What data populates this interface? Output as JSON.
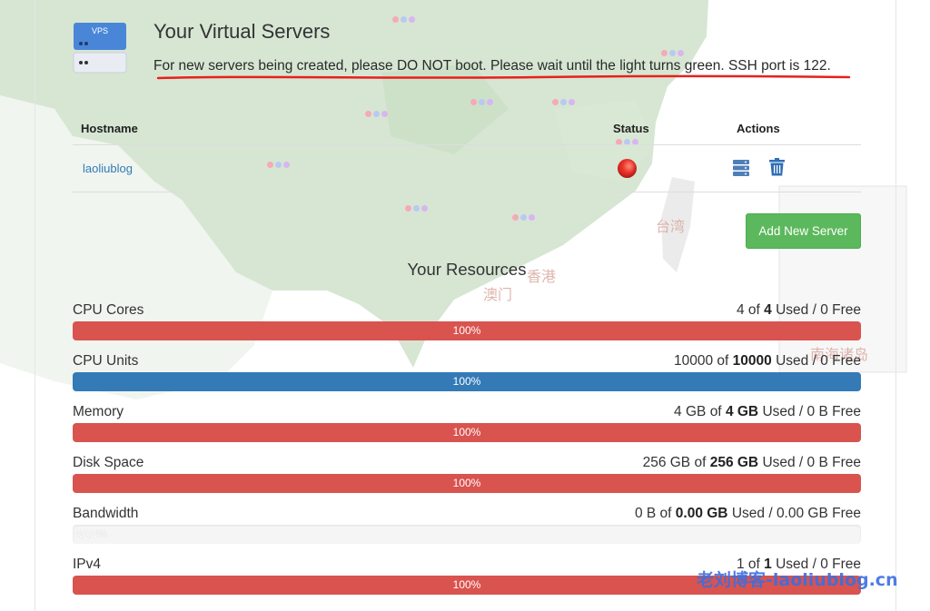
{
  "header": {
    "title": "Your Virtual Servers",
    "notice": "For new servers being created, please DO NOT boot. Please wait until the light turns green. SSH port is 122.",
    "icon_text": "VPS"
  },
  "table": {
    "columns": [
      "Hostname",
      "Status",
      "Actions"
    ],
    "rows": [
      {
        "hostname": "laoliublog",
        "status": "red",
        "actions": [
          "server-manage-icon",
          "trash-icon"
        ]
      }
    ]
  },
  "add_server_label": "Add New Server",
  "resources": {
    "title": "Your Resources",
    "items": [
      {
        "label": "CPU Cores",
        "used": "4",
        "total": "4",
        "unit": "",
        "free": "0",
        "percent_label": "100%",
        "percent": 100,
        "color": "#d9534f"
      },
      {
        "label": "CPU Units",
        "used": "10000",
        "total": "10000",
        "unit": "",
        "free": "0",
        "percent_label": "100%",
        "percent": 100,
        "color": "#337ab7"
      },
      {
        "label": "Memory",
        "used": "4 GB",
        "total": "4 GB",
        "unit": "",
        "free": "0 B",
        "percent_label": "100%",
        "percent": 100,
        "color": "#d9534f"
      },
      {
        "label": "Disk Space",
        "used": "256 GB",
        "total": "256 GB",
        "unit": "",
        "free": "0 B",
        "percent_label": "100%",
        "percent": 100,
        "color": "#d9534f"
      },
      {
        "label": "Bandwidth",
        "used": "0 B",
        "total": "0.00 GB",
        "unit": "",
        "free": "0.00 GB",
        "percent_label": "NAN%",
        "percent": 0,
        "color": "#f5f5f5"
      },
      {
        "label": "IPv4",
        "used": "1",
        "total": "1",
        "unit": "",
        "free": "0",
        "percent_label": "100%",
        "percent": 100,
        "color": "#d9534f"
      }
    ],
    "used_word": "Used",
    "free_word": "Free",
    "of_word": "of"
  },
  "map_labels": [
    "台湾",
    "香港",
    "澳门",
    "南海诸岛"
  ],
  "watermark": "老刘博客-laoliublog.cn",
  "colors": {
    "accent_green": "#5cb85c",
    "bar_red": "#d9534f",
    "bar_blue": "#337ab7",
    "link_blue": "#337ab7",
    "annotation_red": "#e8201c"
  }
}
